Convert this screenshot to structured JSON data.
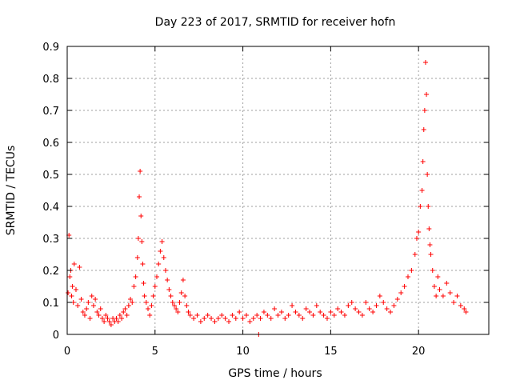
{
  "chart_data": {
    "type": "scatter",
    "title": "Day 223 of 2017, SRMTID for receiver hofn",
    "xlabel": "GPS time / hours",
    "ylabel": "SRMTID / TECUs",
    "xlim": [
      0,
      24
    ],
    "ylim": [
      0,
      0.9
    ],
    "x_ticks": [
      0,
      5,
      10,
      15,
      20
    ],
    "y_ticks": [
      0,
      0.1,
      0.2,
      0.3,
      0.4,
      0.5,
      0.6,
      0.7,
      0.8,
      0.9
    ],
    "x_tick_labels": [
      "0",
      "5",
      "10",
      "15",
      "20"
    ],
    "y_tick_labels": [
      "0",
      "0.1",
      "0.2",
      "0.3",
      "0.4",
      "0.5",
      "0.6",
      "0.7",
      "0.8",
      "0.9"
    ],
    "grid": true,
    "marker": "+",
    "series": [
      {
        "name": "SRMTID",
        "color": "#ff0000",
        "x": [
          0.05,
          0.1,
          0.15,
          0.2,
          0.25,
          0.3,
          0.35,
          0.4,
          0.5,
          0.6,
          0.7,
          0.8,
          0.9,
          1.0,
          1.1,
          1.2,
          1.3,
          1.4,
          1.5,
          1.6,
          1.7,
          1.8,
          1.9,
          2.0,
          2.1,
          2.2,
          2.3,
          2.4,
          2.5,
          2.6,
          2.7,
          2.8,
          2.9,
          3.0,
          3.1,
          3.2,
          3.3,
          3.4,
          3.5,
          3.6,
          3.7,
          3.8,
          3.9,
          4.0,
          4.05,
          4.1,
          4.15,
          4.2,
          4.25,
          4.3,
          4.35,
          4.4,
          4.5,
          4.6,
          4.7,
          4.8,
          4.9,
          5.0,
          5.1,
          5.2,
          5.3,
          5.4,
          5.5,
          5.6,
          5.7,
          5.8,
          5.9,
          6.0,
          6.1,
          6.2,
          6.3,
          6.4,
          6.5,
          6.6,
          6.7,
          6.8,
          6.9,
          7.0,
          7.2,
          7.4,
          7.6,
          7.8,
          8.0,
          8.2,
          8.4,
          8.6,
          8.8,
          9.0,
          9.2,
          9.4,
          9.6,
          9.8,
          10.0,
          10.2,
          10.4,
          10.6,
          10.8,
          10.9,
          11.0,
          11.2,
          11.4,
          11.6,
          11.8,
          12.0,
          12.2,
          12.4,
          12.6,
          12.8,
          13.0,
          13.2,
          13.4,
          13.6,
          13.8,
          14.0,
          14.2,
          14.4,
          14.6,
          14.8,
          15.0,
          15.2,
          15.4,
          15.6,
          15.8,
          16.0,
          16.2,
          16.4,
          16.6,
          16.8,
          17.0,
          17.2,
          17.4,
          17.6,
          17.8,
          18.0,
          18.2,
          18.4,
          18.6,
          18.8,
          19.0,
          19.2,
          19.4,
          19.6,
          19.8,
          19.9,
          20.0,
          20.1,
          20.2,
          20.25,
          20.3,
          20.35,
          20.4,
          20.45,
          20.5,
          20.55,
          20.6,
          20.65,
          20.7,
          20.8,
          20.9,
          21.0,
          21.1,
          21.2,
          21.4,
          21.6,
          21.8,
          22.0,
          22.2,
          22.4,
          22.6,
          22.7
        ],
        "y": [
          0.13,
          0.31,
          0.18,
          0.2,
          0.12,
          0.15,
          0.1,
          0.22,
          0.14,
          0.09,
          0.21,
          0.11,
          0.07,
          0.06,
          0.08,
          0.1,
          0.05,
          0.12,
          0.09,
          0.11,
          0.07,
          0.06,
          0.08,
          0.05,
          0.04,
          0.06,
          0.05,
          0.04,
          0.03,
          0.05,
          0.04,
          0.05,
          0.04,
          0.06,
          0.05,
          0.07,
          0.08,
          0.06,
          0.09,
          0.11,
          0.1,
          0.15,
          0.18,
          0.24,
          0.3,
          0.43,
          0.51,
          0.37,
          0.29,
          0.22,
          0.16,
          0.12,
          0.1,
          0.08,
          0.06,
          0.09,
          0.12,
          0.15,
          0.18,
          0.22,
          0.26,
          0.29,
          0.24,
          0.2,
          0.17,
          0.14,
          0.12,
          0.1,
          0.09,
          0.08,
          0.07,
          0.1,
          0.13,
          0.17,
          0.12,
          0.09,
          0.07,
          0.06,
          0.05,
          0.06,
          0.04,
          0.05,
          0.06,
          0.05,
          0.04,
          0.05,
          0.06,
          0.05,
          0.04,
          0.06,
          0.05,
          0.07,
          0.05,
          0.06,
          0.04,
          0.05,
          0.06,
          0.0,
          0.05,
          0.07,
          0.06,
          0.05,
          0.08,
          0.06,
          0.07,
          0.05,
          0.06,
          0.09,
          0.07,
          0.06,
          0.05,
          0.08,
          0.07,
          0.06,
          0.09,
          0.07,
          0.06,
          0.05,
          0.07,
          0.06,
          0.08,
          0.07,
          0.06,
          0.09,
          0.1,
          0.08,
          0.07,
          0.06,
          0.1,
          0.08,
          0.07,
          0.09,
          0.12,
          0.1,
          0.08,
          0.07,
          0.09,
          0.11,
          0.13,
          0.15,
          0.18,
          0.2,
          0.25,
          0.3,
          0.32,
          0.4,
          0.45,
          0.54,
          0.64,
          0.7,
          0.85,
          0.75,
          0.5,
          0.4,
          0.33,
          0.28,
          0.25,
          0.2,
          0.15,
          0.12,
          0.18,
          0.14,
          0.12,
          0.16,
          0.13,
          0.1,
          0.12,
          0.09,
          0.08,
          0.07
        ]
      }
    ]
  }
}
